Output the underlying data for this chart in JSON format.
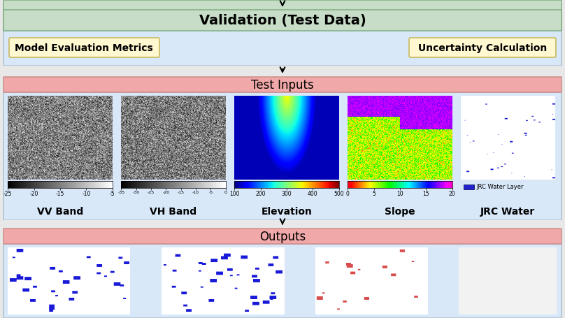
{
  "validation_text": "Validation (Test Data)",
  "metrics_text": "Model Evaluation Metrics",
  "uncertainty_text": "Uncertainty Calculation",
  "test_inputs_text": "Test Inputs",
  "outputs_text": "Outputs",
  "band_labels": [
    "VV Band",
    "VH Band",
    "Elevation",
    "Slope",
    "JRC Water"
  ],
  "validation_bg": "#c8ddc8",
  "validation_border": "#7aaa7a",
  "metrics_section_bg": "#d8e8f8",
  "inputs_section_bg": "#d8e8f8",
  "outputs_section_bg": "#d8e8f8",
  "inputs_header_bg": "#f0a8a8",
  "outputs_header_bg": "#f0a8a8",
  "metrics_box_bg": "#fff8d0",
  "metrics_box_border": "#c8b860",
  "uncertainty_box_bg": "#fff8d0",
  "uncertainty_box_border": "#c8b860",
  "arrow_color": "#000000",
  "bg_color": "#e8e8e8",
  "colorbar_vv": [
    "-25",
    "-20",
    "-15",
    "-10",
    "-5"
  ],
  "colorbar_vh": [
    "-35",
    "-30",
    "-25",
    "-20",
    "-15",
    "-10",
    "-5",
    "0"
  ],
  "colorbar_elev": [
    "100",
    "200",
    "300",
    "400",
    "500"
  ],
  "colorbar_slope": [
    "0",
    "5",
    "10",
    "15",
    "20"
  ],
  "jrc_legend_text": "JRC Water Layer",
  "jrc_legend_color": "#2222cc"
}
